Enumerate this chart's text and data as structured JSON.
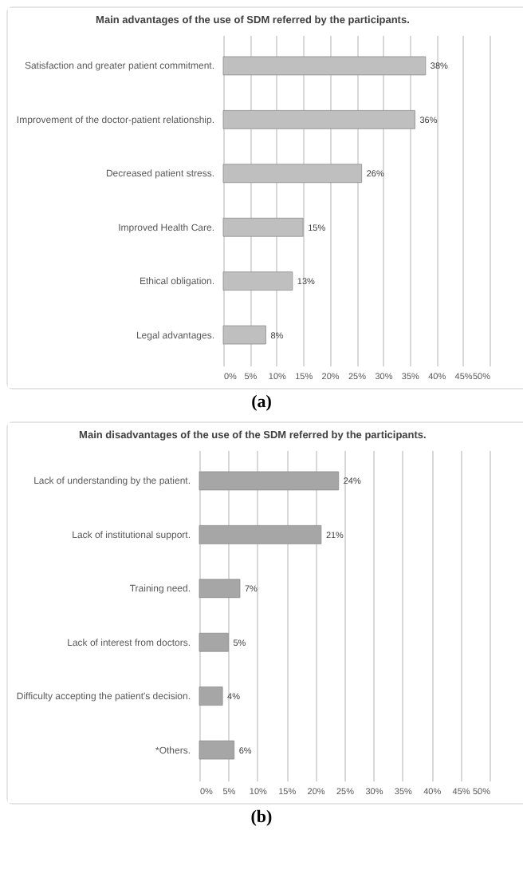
{
  "chart_data": [
    {
      "type": "bar",
      "orientation": "horizontal",
      "title": "Main advantages of the use of SDM referred by the participants.",
      "categories": [
        "Satisfaction and greater patient commitment.",
        "Improvement of the doctor-patient relationship.",
        "Decreased patient stress.",
        "Improved Health Care.",
        "Ethical obligation.",
        "Legal advantages."
      ],
      "values": [
        38,
        36,
        26,
        15,
        13,
        8
      ],
      "value_labels": [
        "38%",
        "36%",
        "26%",
        "15%",
        "13%",
        "8%"
      ],
      "color": "#bfbfbf",
      "xlim": [
        0,
        50
      ],
      "xticks": [
        {
          "value": 0,
          "label": "0%"
        },
        {
          "value": 5,
          "label": "5%"
        },
        {
          "value": 10,
          "label": "10%"
        },
        {
          "value": 15,
          "label": "15%"
        },
        {
          "value": 20,
          "label": "20%"
        },
        {
          "value": 25,
          "label": "25%"
        },
        {
          "value": 30,
          "label": "30%"
        },
        {
          "value": 35,
          "label": "35%"
        },
        {
          "value": 40,
          "label": "40%"
        },
        {
          "value": 45,
          "label": "45%"
        },
        {
          "value": 50,
          "label": "50%"
        }
      ],
      "grid": "x",
      "annotations": [
        "(a)"
      ]
    },
    {
      "type": "bar",
      "orientation": "horizontal",
      "title": "Main disadvantages of the use of the SDM referred by the participants.",
      "categories": [
        "Lack of understanding by the patient.",
        "Lack of institutional support.",
        "Training need.",
        "Lack of interest from doctors.",
        "Difficulty accepting the patient's decision.",
        "*Others."
      ],
      "values": [
        24,
        21,
        7,
        5,
        4,
        6
      ],
      "value_labels": [
        "24%",
        "21%",
        "7%",
        "5%",
        "4%",
        "6%"
      ],
      "color": "#a6a6a6",
      "xlim": [
        0,
        50
      ],
      "xticks": [
        {
          "value": 0,
          "label": "0%"
        },
        {
          "value": 5,
          "label": "5%"
        },
        {
          "value": 10,
          "label": "10%"
        },
        {
          "value": 15,
          "label": "15%"
        },
        {
          "value": 20,
          "label": "20%"
        },
        {
          "value": 25,
          "label": "25%"
        },
        {
          "value": 30,
          "label": "30%"
        },
        {
          "value": 35,
          "label": "35%"
        },
        {
          "value": 40,
          "label": "40%"
        },
        {
          "value": 45,
          "label": "45%"
        },
        {
          "value": 50,
          "label": "50%"
        }
      ],
      "grid": "x",
      "annotations": [
        "(b)"
      ]
    }
  ]
}
